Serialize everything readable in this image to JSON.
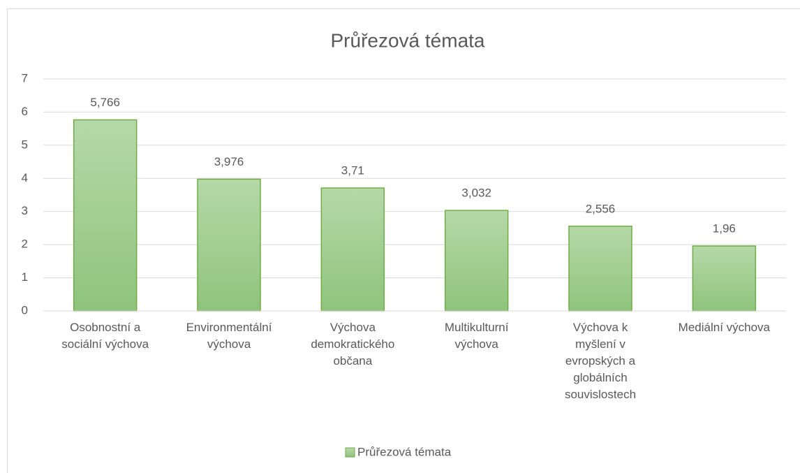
{
  "chart_data": {
    "type": "bar",
    "title": "Průřezová témata",
    "categories": [
      "Osobnostní a sociální výchova",
      "Environmentální výchova",
      "Výchova demokratického občana",
      "Multikulturní výchova",
      "Výchova k myšlení v evropských a globálních souvislostech",
      "Mediální výchova"
    ],
    "series": [
      {
        "name": "Průřezová témata",
        "color": "#70ad47",
        "values": [
          5.766,
          3.976,
          3.71,
          3.032,
          2.556,
          1.96
        ],
        "value_labels": [
          "5,766",
          "3,976",
          "3,71",
          "3,032",
          "2,556",
          "1,96"
        ]
      }
    ],
    "ylim": [
      0,
      7
    ],
    "yticks": [
      0,
      1,
      2,
      3,
      4,
      5,
      6,
      7
    ],
    "grid": true,
    "legend": "bottom"
  }
}
